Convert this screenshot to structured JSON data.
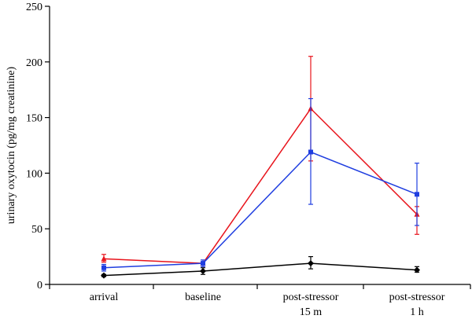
{
  "chart_data": {
    "type": "line",
    "title": "",
    "xlabel": "",
    "ylabel": "urinary oxytocin (pg/mg creatinine)",
    "ylim": [
      0,
      250
    ],
    "yticks": [
      0,
      50,
      100,
      150,
      200,
      250
    ],
    "categories": [
      [
        "arrival"
      ],
      [
        "baseline"
      ],
      [
        "post-stressor",
        "15 m"
      ],
      [
        "post-stressor",
        "1 h"
      ]
    ],
    "series": [
      {
        "name": "red",
        "color": "#e8141c",
        "marker": "triangle",
        "values": [
          23,
          19,
          158,
          63
        ],
        "err_low": [
          20,
          18,
          111,
          45
        ],
        "err_high": [
          27,
          20,
          205,
          70
        ]
      },
      {
        "name": "blue",
        "color": "#1f3ee0",
        "marker": "square",
        "values": [
          15,
          19,
          119,
          81
        ],
        "err_low": [
          12,
          16,
          72,
          53
        ],
        "err_high": [
          18,
          22,
          167,
          109
        ]
      },
      {
        "name": "black",
        "color": "#000000",
        "marker": "diamond",
        "values": [
          8,
          12,
          19,
          13
        ],
        "err_low": [
          7,
          9,
          14,
          11
        ],
        "err_high": [
          9,
          15,
          25,
          16
        ]
      }
    ]
  }
}
